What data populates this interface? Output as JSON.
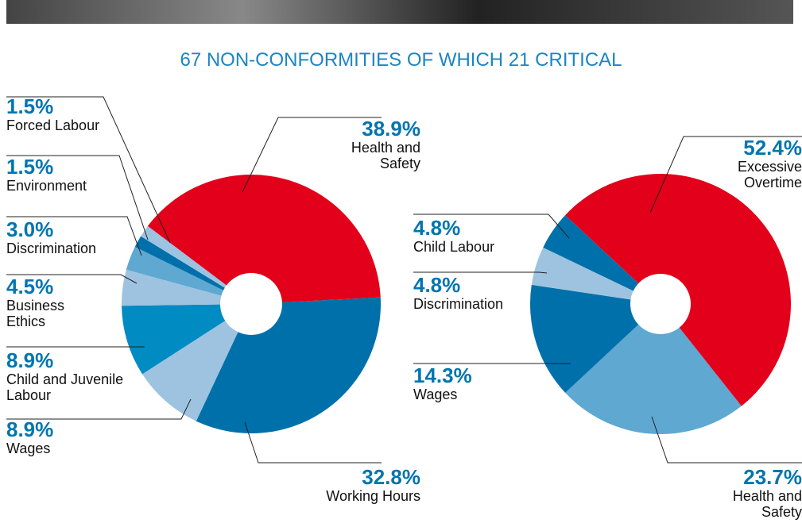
{
  "title": "67 NON-CONFORMITIES OF WHICH 21 CRITICAL",
  "chart_data": [
    {
      "type": "pie",
      "categories": [
        "Health and Safety",
        "Working Hours",
        "Wages",
        "Child and Juvenile Labour",
        "Business Ethics",
        "Discrimination",
        "Environment",
        "Forced Labour"
      ],
      "values": [
        38.9,
        32.8,
        8.9,
        8.9,
        4.5,
        3.0,
        1.5,
        1.5
      ],
      "value_labels": [
        "38.9%",
        "32.8%",
        "8.9%",
        "8.9%",
        "4.5%",
        "3.0%",
        "1.5%",
        "1.5%"
      ],
      "colors": [
        "#e2001a",
        "#0070ab",
        "#9dc3e0",
        "#008bc2",
        "#9dc3e0",
        "#5ea8d2",
        "#0070ab",
        "#9dc3e0"
      ]
    },
    {
      "type": "pie",
      "categories": [
        "Excessive Overtime",
        "Health and Safety",
        "Wages",
        "Discrimination",
        "Child Labour"
      ],
      "values": [
        52.4,
        23.7,
        14.3,
        4.8,
        4.8
      ],
      "value_labels": [
        "52.4%",
        "23.7%",
        "14.3%",
        "4.8%",
        "4.8%"
      ],
      "colors": [
        "#e2001a",
        "#5ea8d2",
        "#0070ab",
        "#9dc3e0",
        "#0070ab"
      ]
    }
  ]
}
